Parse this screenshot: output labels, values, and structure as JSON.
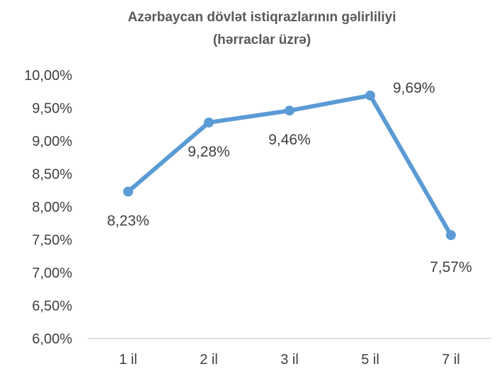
{
  "chart_data": {
    "type": "line",
    "title": "Azərbaycan dövlət istiqrazlarının gəlirliliyi",
    "subtitle": "(hərraclar üzrə)",
    "categories": [
      "1 il",
      "2 il",
      "3 il",
      "5 il",
      "7 il"
    ],
    "series": [
      {
        "values": [
          8.23,
          9.28,
          9.46,
          9.69,
          7.57
        ],
        "labels": [
          "8,23%",
          "9,28%",
          "9,46%",
          "9,69%",
          "7,57%"
        ],
        "color": "#5B9BD5"
      }
    ],
    "ylim": [
      6.0,
      10.0
    ],
    "yticks": [
      {
        "value": 6.0,
        "label": "6,00%"
      },
      {
        "value": 6.5,
        "label": "6,50%"
      },
      {
        "value": 7.0,
        "label": "7,00%"
      },
      {
        "value": 7.5,
        "label": "7,50%"
      },
      {
        "value": 8.0,
        "label": "8,00%"
      },
      {
        "value": 8.5,
        "label": "8,50%"
      },
      {
        "value": 9.0,
        "label": "9,00%"
      },
      {
        "value": 9.5,
        "label": "9,50%"
      },
      {
        "value": 10.0,
        "label": "10,00%"
      }
    ],
    "grid": false,
    "legend": "none",
    "axis_color": "#D9D9D9"
  }
}
